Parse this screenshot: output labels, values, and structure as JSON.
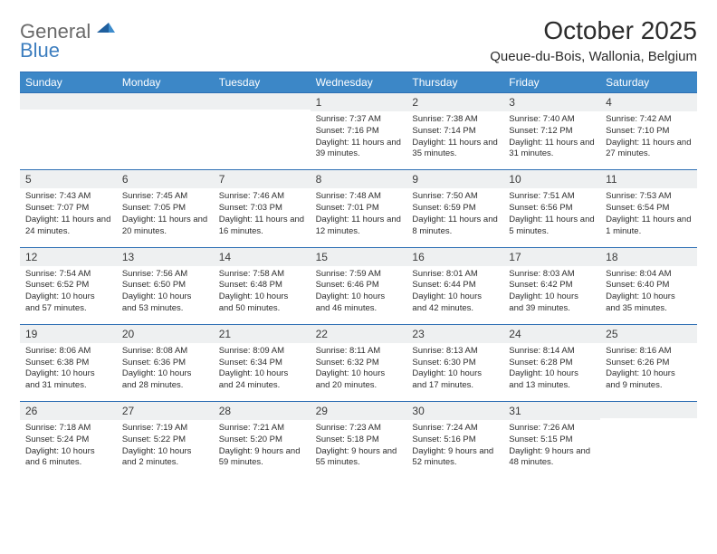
{
  "brand": {
    "line1": "General",
    "line2": "Blue"
  },
  "title": "October 2025",
  "subtitle": "Queue-du-Bois, Wallonia, Belgium",
  "colors": {
    "header_bg": "#3c87c7",
    "rule": "#2e6fb4",
    "daynum_bg": "#eef0f1",
    "text": "#2d2d2d",
    "logo_gray": "#6a6a6a",
    "logo_blue": "#3d7ebf"
  },
  "day_headers": [
    "Sunday",
    "Monday",
    "Tuesday",
    "Wednesday",
    "Thursday",
    "Friday",
    "Saturday"
  ],
  "weeks": [
    [
      {
        "n": "",
        "sunrise": "",
        "sunset": "",
        "daylight": ""
      },
      {
        "n": "",
        "sunrise": "",
        "sunset": "",
        "daylight": ""
      },
      {
        "n": "",
        "sunrise": "",
        "sunset": "",
        "daylight": ""
      },
      {
        "n": "1",
        "sunrise": "Sunrise: 7:37 AM",
        "sunset": "Sunset: 7:16 PM",
        "daylight": "Daylight: 11 hours and 39 minutes."
      },
      {
        "n": "2",
        "sunrise": "Sunrise: 7:38 AM",
        "sunset": "Sunset: 7:14 PM",
        "daylight": "Daylight: 11 hours and 35 minutes."
      },
      {
        "n": "3",
        "sunrise": "Sunrise: 7:40 AM",
        "sunset": "Sunset: 7:12 PM",
        "daylight": "Daylight: 11 hours and 31 minutes."
      },
      {
        "n": "4",
        "sunrise": "Sunrise: 7:42 AM",
        "sunset": "Sunset: 7:10 PM",
        "daylight": "Daylight: 11 hours and 27 minutes."
      }
    ],
    [
      {
        "n": "5",
        "sunrise": "Sunrise: 7:43 AM",
        "sunset": "Sunset: 7:07 PM",
        "daylight": "Daylight: 11 hours and 24 minutes."
      },
      {
        "n": "6",
        "sunrise": "Sunrise: 7:45 AM",
        "sunset": "Sunset: 7:05 PM",
        "daylight": "Daylight: 11 hours and 20 minutes."
      },
      {
        "n": "7",
        "sunrise": "Sunrise: 7:46 AM",
        "sunset": "Sunset: 7:03 PM",
        "daylight": "Daylight: 11 hours and 16 minutes."
      },
      {
        "n": "8",
        "sunrise": "Sunrise: 7:48 AM",
        "sunset": "Sunset: 7:01 PM",
        "daylight": "Daylight: 11 hours and 12 minutes."
      },
      {
        "n": "9",
        "sunrise": "Sunrise: 7:50 AM",
        "sunset": "Sunset: 6:59 PM",
        "daylight": "Daylight: 11 hours and 8 minutes."
      },
      {
        "n": "10",
        "sunrise": "Sunrise: 7:51 AM",
        "sunset": "Sunset: 6:56 PM",
        "daylight": "Daylight: 11 hours and 5 minutes."
      },
      {
        "n": "11",
        "sunrise": "Sunrise: 7:53 AM",
        "sunset": "Sunset: 6:54 PM",
        "daylight": "Daylight: 11 hours and 1 minute."
      }
    ],
    [
      {
        "n": "12",
        "sunrise": "Sunrise: 7:54 AM",
        "sunset": "Sunset: 6:52 PM",
        "daylight": "Daylight: 10 hours and 57 minutes."
      },
      {
        "n": "13",
        "sunrise": "Sunrise: 7:56 AM",
        "sunset": "Sunset: 6:50 PM",
        "daylight": "Daylight: 10 hours and 53 minutes."
      },
      {
        "n": "14",
        "sunrise": "Sunrise: 7:58 AM",
        "sunset": "Sunset: 6:48 PM",
        "daylight": "Daylight: 10 hours and 50 minutes."
      },
      {
        "n": "15",
        "sunrise": "Sunrise: 7:59 AM",
        "sunset": "Sunset: 6:46 PM",
        "daylight": "Daylight: 10 hours and 46 minutes."
      },
      {
        "n": "16",
        "sunrise": "Sunrise: 8:01 AM",
        "sunset": "Sunset: 6:44 PM",
        "daylight": "Daylight: 10 hours and 42 minutes."
      },
      {
        "n": "17",
        "sunrise": "Sunrise: 8:03 AM",
        "sunset": "Sunset: 6:42 PM",
        "daylight": "Daylight: 10 hours and 39 minutes."
      },
      {
        "n": "18",
        "sunrise": "Sunrise: 8:04 AM",
        "sunset": "Sunset: 6:40 PM",
        "daylight": "Daylight: 10 hours and 35 minutes."
      }
    ],
    [
      {
        "n": "19",
        "sunrise": "Sunrise: 8:06 AM",
        "sunset": "Sunset: 6:38 PM",
        "daylight": "Daylight: 10 hours and 31 minutes."
      },
      {
        "n": "20",
        "sunrise": "Sunrise: 8:08 AM",
        "sunset": "Sunset: 6:36 PM",
        "daylight": "Daylight: 10 hours and 28 minutes."
      },
      {
        "n": "21",
        "sunrise": "Sunrise: 8:09 AM",
        "sunset": "Sunset: 6:34 PM",
        "daylight": "Daylight: 10 hours and 24 minutes."
      },
      {
        "n": "22",
        "sunrise": "Sunrise: 8:11 AM",
        "sunset": "Sunset: 6:32 PM",
        "daylight": "Daylight: 10 hours and 20 minutes."
      },
      {
        "n": "23",
        "sunrise": "Sunrise: 8:13 AM",
        "sunset": "Sunset: 6:30 PM",
        "daylight": "Daylight: 10 hours and 17 minutes."
      },
      {
        "n": "24",
        "sunrise": "Sunrise: 8:14 AM",
        "sunset": "Sunset: 6:28 PM",
        "daylight": "Daylight: 10 hours and 13 minutes."
      },
      {
        "n": "25",
        "sunrise": "Sunrise: 8:16 AM",
        "sunset": "Sunset: 6:26 PM",
        "daylight": "Daylight: 10 hours and 9 minutes."
      }
    ],
    [
      {
        "n": "26",
        "sunrise": "Sunrise: 7:18 AM",
        "sunset": "Sunset: 5:24 PM",
        "daylight": "Daylight: 10 hours and 6 minutes."
      },
      {
        "n": "27",
        "sunrise": "Sunrise: 7:19 AM",
        "sunset": "Sunset: 5:22 PM",
        "daylight": "Daylight: 10 hours and 2 minutes."
      },
      {
        "n": "28",
        "sunrise": "Sunrise: 7:21 AM",
        "sunset": "Sunset: 5:20 PM",
        "daylight": "Daylight: 9 hours and 59 minutes."
      },
      {
        "n": "29",
        "sunrise": "Sunrise: 7:23 AM",
        "sunset": "Sunset: 5:18 PM",
        "daylight": "Daylight: 9 hours and 55 minutes."
      },
      {
        "n": "30",
        "sunrise": "Sunrise: 7:24 AM",
        "sunset": "Sunset: 5:16 PM",
        "daylight": "Daylight: 9 hours and 52 minutes."
      },
      {
        "n": "31",
        "sunrise": "Sunrise: 7:26 AM",
        "sunset": "Sunset: 5:15 PM",
        "daylight": "Daylight: 9 hours and 48 minutes."
      },
      {
        "n": "",
        "sunrise": "",
        "sunset": "",
        "daylight": ""
      }
    ]
  ]
}
